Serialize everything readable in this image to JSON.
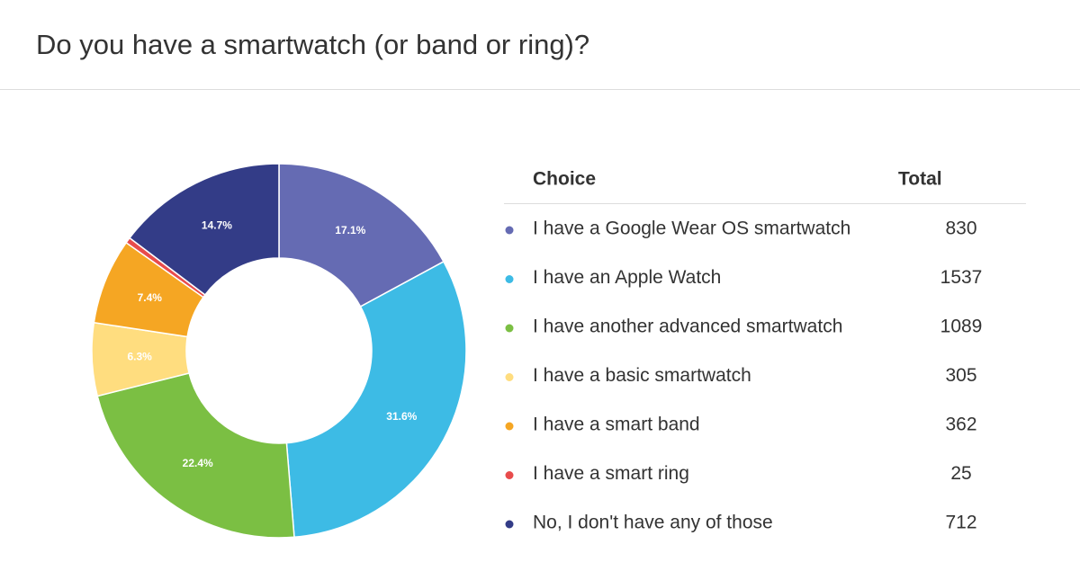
{
  "chart_data": {
    "type": "pie",
    "donut": true,
    "title": "Do you have a smartwatch (or band or ring)?",
    "categories": [
      "I have a Google Wear OS smartwatch",
      "I have an Apple Watch",
      "I have another advanced smartwatch",
      "I have a basic smartwatch",
      "I have a smart band",
      "I have a smart ring",
      "No, I don't have any of those"
    ],
    "values": [
      17.1,
      31.6,
      22.4,
      6.3,
      7.4,
      0.5,
      14.7
    ],
    "value_labels": [
      "17.1%",
      "31.6%",
      "22.4%",
      "6.3%",
      "7.4%",
      null,
      "14.7%"
    ],
    "colors": [
      "#656bb3",
      "#3dbbe5",
      "#7bbf43",
      "#ffdd7f",
      "#f5a623",
      "#e84c4c",
      "#333c87"
    ]
  },
  "table": {
    "headers": [
      "Choice",
      "Total"
    ],
    "totals": [
      830,
      1537,
      1089,
      305,
      362,
      25,
      712
    ]
  }
}
